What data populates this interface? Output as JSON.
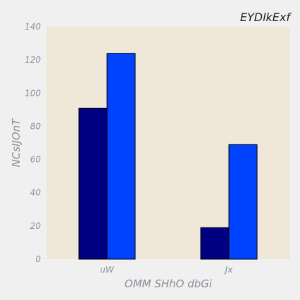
{
  "chart_data": {
    "type": "bar",
    "title": "EYDlkExf",
    "xlabel": "OMM SHhO dbGi",
    "ylabel": "NCsIJOnT",
    "categories": [
      "uW",
      "Jx"
    ],
    "series": [
      {
        "values": [
          91,
          19
        ],
        "color": "#000080"
      },
      {
        "values": [
          124,
          69
        ],
        "color": "#0043ff"
      }
    ],
    "ylim": [
      0,
      140
    ],
    "yticks": [
      0,
      20,
      40,
      60,
      80,
      100,
      120,
      140
    ],
    "grid": false,
    "colors": {
      "page_background": "#f0f0f0",
      "plot_background": "#efe8d9",
      "tick_text": "#8a8f98",
      "title_text": "#222222"
    }
  }
}
